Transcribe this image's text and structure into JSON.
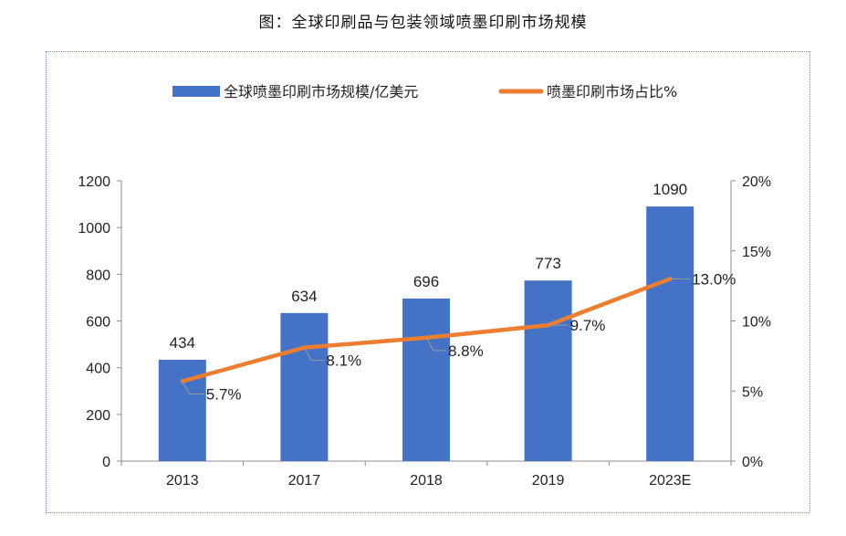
{
  "figure_title": "图：全球印刷品与包装领域喷墨印刷市场规模",
  "chart_data": {
    "type": "bar",
    "categories": [
      "2013",
      "2017",
      "2018",
      "2019",
      "2023E"
    ],
    "series": [
      {
        "name": "全球喷墨印刷市场规模/亿美元",
        "kind": "bar",
        "axis": "left",
        "values": [
          434,
          634,
          696,
          773,
          1090
        ],
        "labels": [
          "434",
          "634",
          "696",
          "773",
          "1090"
        ],
        "color": "#4472C4"
      },
      {
        "name": "喷墨印刷市场占比%",
        "kind": "line",
        "axis": "right",
        "values": [
          5.7,
          8.1,
          8.8,
          9.7,
          13.0
        ],
        "labels": [
          "5.7%",
          "8.1%",
          "8.8%",
          "9.7%",
          "13.0%"
        ],
        "color": "#ED7D31"
      }
    ],
    "y_left": {
      "min": 0,
      "max": 1200,
      "step": 200,
      "tick_labels": [
        "0",
        "200",
        "400",
        "600",
        "800",
        "1000",
        "1200"
      ]
    },
    "y_right": {
      "min": 0,
      "max": 20,
      "step": 5,
      "tick_labels": [
        "0%",
        "5%",
        "10%",
        "15%",
        "20%"
      ]
    },
    "legend_position": "top",
    "grid": false
  }
}
